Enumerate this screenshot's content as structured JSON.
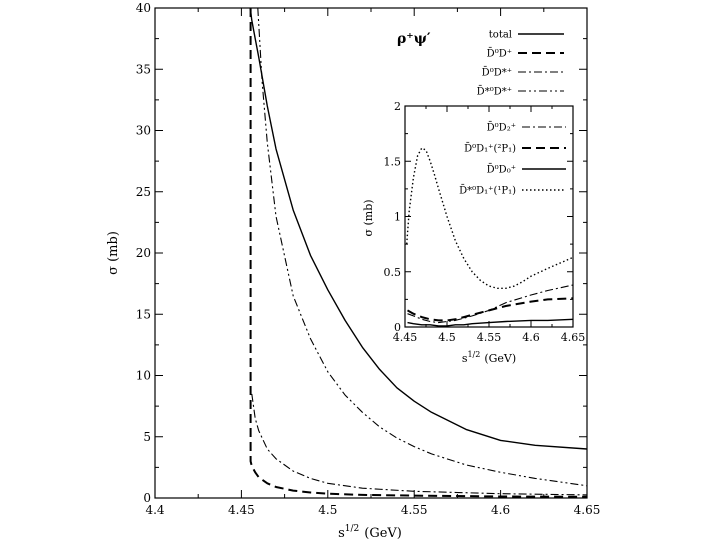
{
  "chart_data": [
    {
      "type": "line",
      "title": "ρ⁺ψ′",
      "xlabel": "s^1/2 (GeV)",
      "xlabel_base": "s",
      "xlabel_sup": "1/2",
      "xlabel_unit": "(GeV)",
      "ylabel": "σ (mb)",
      "xlim": [
        4.4,
        4.65
      ],
      "ylim": [
        0,
        40
      ],
      "x_ticks": [
        "4.4",
        "4.45",
        "4.5",
        "4.55",
        "4.6",
        "4.65"
      ],
      "y_ticks": [
        "0",
        "5",
        "10",
        "15",
        "20",
        "25",
        "30",
        "35",
        "40"
      ],
      "legend_position": "top-right",
      "series": [
        {
          "name": "total",
          "style": "solid",
          "x": [
            4.4551,
            4.456,
            4.458,
            4.46,
            4.465,
            4.47,
            4.48,
            4.49,
            4.5,
            4.51,
            4.52,
            4.53,
            4.54,
            4.55,
            4.56,
            4.58,
            4.6,
            4.62,
            4.65
          ],
          "y": [
            40,
            39,
            37.5,
            36,
            32,
            28.5,
            23.5,
            19.8,
            17,
            14.5,
            12.3,
            10.5,
            9.0,
            7.9,
            7.0,
            5.6,
            4.7,
            4.3,
            4.0
          ]
        },
        {
          "name": "D̄⁰D⁺",
          "style": "dashed",
          "x": [
            4.4553,
            4.4553,
            4.456,
            4.458,
            4.46,
            4.465,
            4.47,
            4.48,
            4.49,
            4.5,
            4.52,
            4.55,
            4.6,
            4.65
          ],
          "y": [
            40,
            3.0,
            2.6,
            2.1,
            1.7,
            1.2,
            0.9,
            0.6,
            0.45,
            0.35,
            0.25,
            0.2,
            0.12,
            0.1
          ]
        },
        {
          "name": "D̄⁰D*⁺",
          "style": "dashdot",
          "x": [
            4.456,
            4.457,
            4.458,
            4.46,
            4.465,
            4.47,
            4.48,
            4.49,
            4.5,
            4.52,
            4.55,
            4.6,
            4.65
          ],
          "y": [
            8.5,
            7.5,
            6.5,
            5.5,
            4.0,
            3.2,
            2.2,
            1.6,
            1.2,
            0.8,
            0.55,
            0.35,
            0.25
          ]
        },
        {
          "name": "D̄*⁰D*⁺",
          "style": "dashdotdot",
          "x": [
            4.4595,
            4.462,
            4.465,
            4.47,
            4.48,
            4.49,
            4.5,
            4.51,
            4.52,
            4.53,
            4.54,
            4.55,
            4.56,
            4.58,
            4.6,
            4.62,
            4.65
          ],
          "y": [
            40,
            34,
            29,
            23,
            16.5,
            13.0,
            10.3,
            8.4,
            7.0,
            5.8,
            4.9,
            4.2,
            3.6,
            2.7,
            2.1,
            1.6,
            1.0
          ]
        }
      ]
    },
    {
      "type": "line",
      "inset": true,
      "xlabel": "s^1/2 (GeV)",
      "xlabel_base": "s",
      "xlabel_sup": "1/2",
      "xlabel_unit": "(GeV)",
      "ylabel": "σ (mb)",
      "xlim": [
        4.45,
        4.65
      ],
      "ylim": [
        0,
        2
      ],
      "x_ticks": [
        "4.45",
        "4.5",
        "4.55",
        "4.6",
        "4.65"
      ],
      "y_ticks": [
        "0",
        "0.5",
        "1",
        "1.5",
        "2"
      ],
      "legend_position": "top-right",
      "series": [
        {
          "name": "D̄⁰D₂⁺",
          "style": "dashdot",
          "x": [
            4.453,
            4.46,
            4.47,
            4.48,
            4.49,
            4.5,
            4.51,
            4.52,
            4.53,
            4.55,
            4.57,
            4.6,
            4.62,
            4.65
          ],
          "y": [
            0.12,
            0.1,
            0.07,
            0.05,
            0.04,
            0.05,
            0.06,
            0.08,
            0.1,
            0.15,
            0.22,
            0.29,
            0.33,
            0.38
          ]
        },
        {
          "name": "D̄⁰D₁⁺(²P₁)",
          "style": "dashed",
          "x": [
            4.453,
            4.46,
            4.47,
            4.48,
            4.49,
            4.5,
            4.51,
            4.52,
            4.53,
            4.55,
            4.57,
            4.6,
            4.62,
            4.65
          ],
          "y": [
            0.15,
            0.12,
            0.09,
            0.07,
            0.06,
            0.06,
            0.07,
            0.09,
            0.11,
            0.15,
            0.19,
            0.23,
            0.25,
            0.26
          ]
        },
        {
          "name": "D̄⁰D₀⁺",
          "style": "solid",
          "x": [
            4.453,
            4.46,
            4.47,
            4.48,
            4.49,
            4.5,
            4.51,
            4.52,
            4.53,
            4.55,
            4.57,
            4.6,
            4.62,
            4.65
          ],
          "y": [
            0.04,
            0.03,
            0.02,
            0.02,
            0.01,
            0.01,
            0.02,
            0.02,
            0.03,
            0.04,
            0.05,
            0.06,
            0.06,
            0.07
          ]
        },
        {
          "name": "D̄*⁰D₁⁺(¹P₁)",
          "style": "dotted",
          "x": [
            4.452,
            4.455,
            4.46,
            4.465,
            4.47,
            4.475,
            4.48,
            4.485,
            4.49,
            4.5,
            4.51,
            4.52,
            4.53,
            4.54,
            4.55,
            4.56,
            4.57,
            4.58,
            4.59,
            4.6,
            4.62,
            4.65
          ],
          "y": [
            0.75,
            1.05,
            1.35,
            1.55,
            1.62,
            1.6,
            1.5,
            1.38,
            1.25,
            1.0,
            0.78,
            0.62,
            0.5,
            0.42,
            0.37,
            0.35,
            0.35,
            0.37,
            0.41,
            0.46,
            0.53,
            0.63
          ]
        }
      ]
    }
  ]
}
